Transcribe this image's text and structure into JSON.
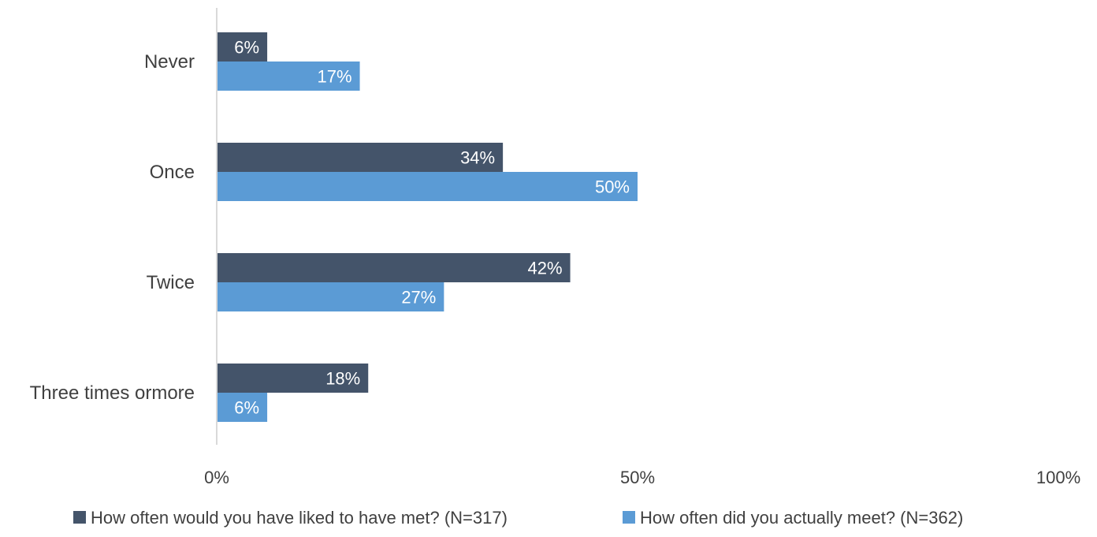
{
  "chart_data": {
    "type": "bar",
    "orientation": "horizontal",
    "categories": [
      "Never",
      "Once",
      "Twice",
      "Three times ormore"
    ],
    "series": [
      {
        "name": "How often would you have liked to have met? (N=317)",
        "values": [
          6,
          34,
          42,
          18
        ],
        "labels": [
          "6%",
          "34%",
          "42%",
          "18%"
        ],
        "color": "#44546a"
      },
      {
        "name": "How often did you actually meet? (N=362)",
        "values": [
          17,
          50,
          27,
          6
        ],
        "labels": [
          "17%",
          "50%",
          "27%",
          "6%"
        ],
        "color": "#5b9bd5"
      }
    ],
    "xlim": [
      0,
      100
    ],
    "xticks": [
      0,
      50,
      100
    ],
    "xtick_labels": [
      "0%",
      "50%",
      "100%"
    ],
    "xlabel": "",
    "ylabel": "",
    "title": "",
    "grid": false,
    "legend_position": "bottom",
    "axis_color": "#d9d9d9"
  }
}
